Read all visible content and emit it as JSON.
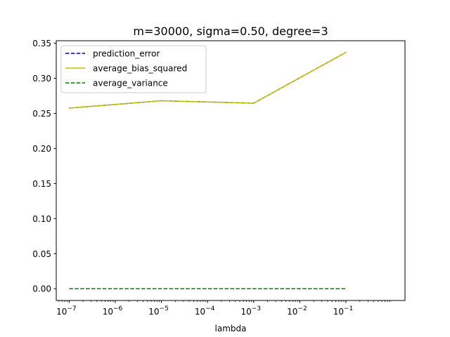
{
  "chart_data": {
    "type": "line",
    "title": "m=30000, sigma=0.50, degree=3",
    "xlabel": "lambda",
    "ylabel": "",
    "xscale": "log",
    "xlim_exp": [
      -7.28,
      0.28
    ],
    "ylim": [
      -0.0168,
      0.3536
    ],
    "grid": false,
    "legend_position": "top-left",
    "x": [
      1e-07,
      1e-05,
      0.001,
      0.1
    ],
    "x_exponents": [
      -7,
      -5,
      -3,
      -1
    ],
    "series": [
      {
        "name": "prediction_error",
        "values": [
          0.2575,
          0.268,
          0.2645,
          0.337
        ],
        "color": "#0000bf",
        "style": "dashed"
      },
      {
        "name": "average_bias_squared",
        "values": [
          0.2575,
          0.268,
          0.2645,
          0.337
        ],
        "color": "#bfbf00",
        "style": "solid"
      },
      {
        "name": "average_variance",
        "values": [
          0.0,
          0.0,
          0.0,
          0.0
        ],
        "color": "#008000",
        "style": "dashed"
      }
    ],
    "y_ticks": [
      0.0,
      0.05,
      0.1,
      0.15,
      0.2,
      0.25,
      0.3,
      0.35
    ],
    "y_tick_labels": [
      "0.00",
      "0.05",
      "0.10",
      "0.15",
      "0.20",
      "0.25",
      "0.30",
      "0.35"
    ],
    "x_major_exponents": [
      -7,
      -6,
      -5,
      -4,
      -3,
      -2,
      -1
    ],
    "x_tick_base": "10",
    "x_tick_exponent_labels": [
      "−7",
      "−6",
      "−5",
      "−4",
      "−3",
      "−2",
      "−1"
    ]
  }
}
